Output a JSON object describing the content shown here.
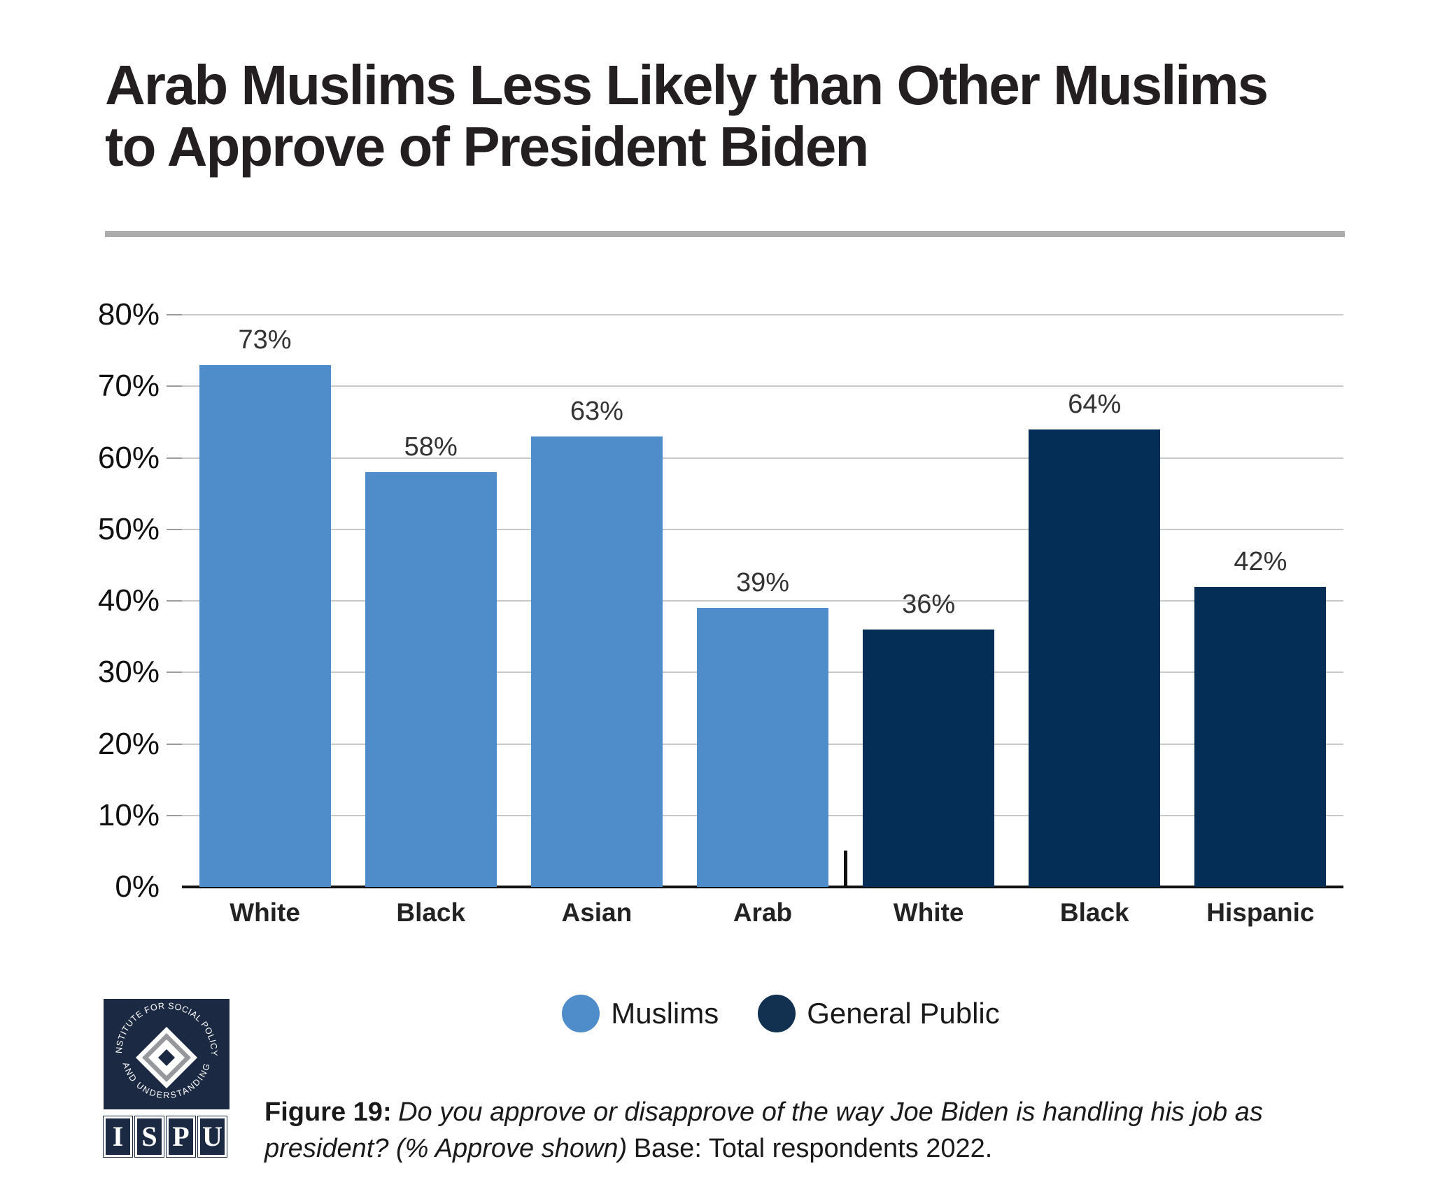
{
  "page": {
    "title_lines": [
      "Arab Muslims Less Likely than Other Muslims",
      "to Approve of President Biden"
    ]
  },
  "chart_data": {
    "type": "bar",
    "title": "Arab Muslims Less Likely than Other Muslims to Approve of President Biden",
    "categories": [
      "White",
      "Black",
      "Asian",
      "Arab",
      "White",
      "Black",
      "Hispanic"
    ],
    "values": [
      73,
      58,
      63,
      39,
      36,
      64,
      42
    ],
    "value_labels": [
      "73%",
      "58%",
      "63%",
      "39%",
      "36%",
      "64%",
      "42%"
    ],
    "series_membership": [
      "Muslims",
      "Muslims",
      "Muslims",
      "Muslims",
      "General Public",
      "General Public",
      "General Public"
    ],
    "series": [
      {
        "name": "Muslims",
        "color": "#4f8cca",
        "categories": [
          "White",
          "Black",
          "Asian",
          "Arab"
        ],
        "values": [
          73,
          58,
          63,
          39
        ]
      },
      {
        "name": "General Public",
        "color": "#042e55",
        "categories": [
          "White",
          "Black",
          "Hispanic"
        ],
        "values": [
          36,
          64,
          42
        ]
      }
    ],
    "ylim": [
      0,
      80
    ],
    "ytick_step": 10,
    "yticks": [
      "0%",
      "10%",
      "20%",
      "30%",
      "40%",
      "50%",
      "60%",
      "70%",
      "80%"
    ],
    "grid": true,
    "legend_position": "bottom",
    "group_separator_after_index": 3
  },
  "legend": {
    "items": [
      {
        "label": "Muslims",
        "color": "#4f8cca"
      },
      {
        "label": "General Public",
        "color": "#123150"
      }
    ]
  },
  "caption": {
    "figure_label": "Figure 19:",
    "question": "Do you approve or disapprove of the way Joe Biden is handling his job as president? (% Approve shown)",
    "base": "Base: Total respondents 2022."
  },
  "logo": {
    "arc_top": "INSTITUTE FOR SOCIAL POLICY",
    "arc_bottom": "AND UNDERSTANDING",
    "letters": [
      "I",
      "S",
      "P",
      "U"
    ],
    "navy": "#1b2a42",
    "gray": "#96989b"
  },
  "colors": {
    "muslims_bar": "#4f8cca",
    "general_public_bar": "#042e55",
    "gridline": "#c9c9c9",
    "axis": "#111111",
    "title_text": "#231f20",
    "title_rule": "#ababab"
  }
}
